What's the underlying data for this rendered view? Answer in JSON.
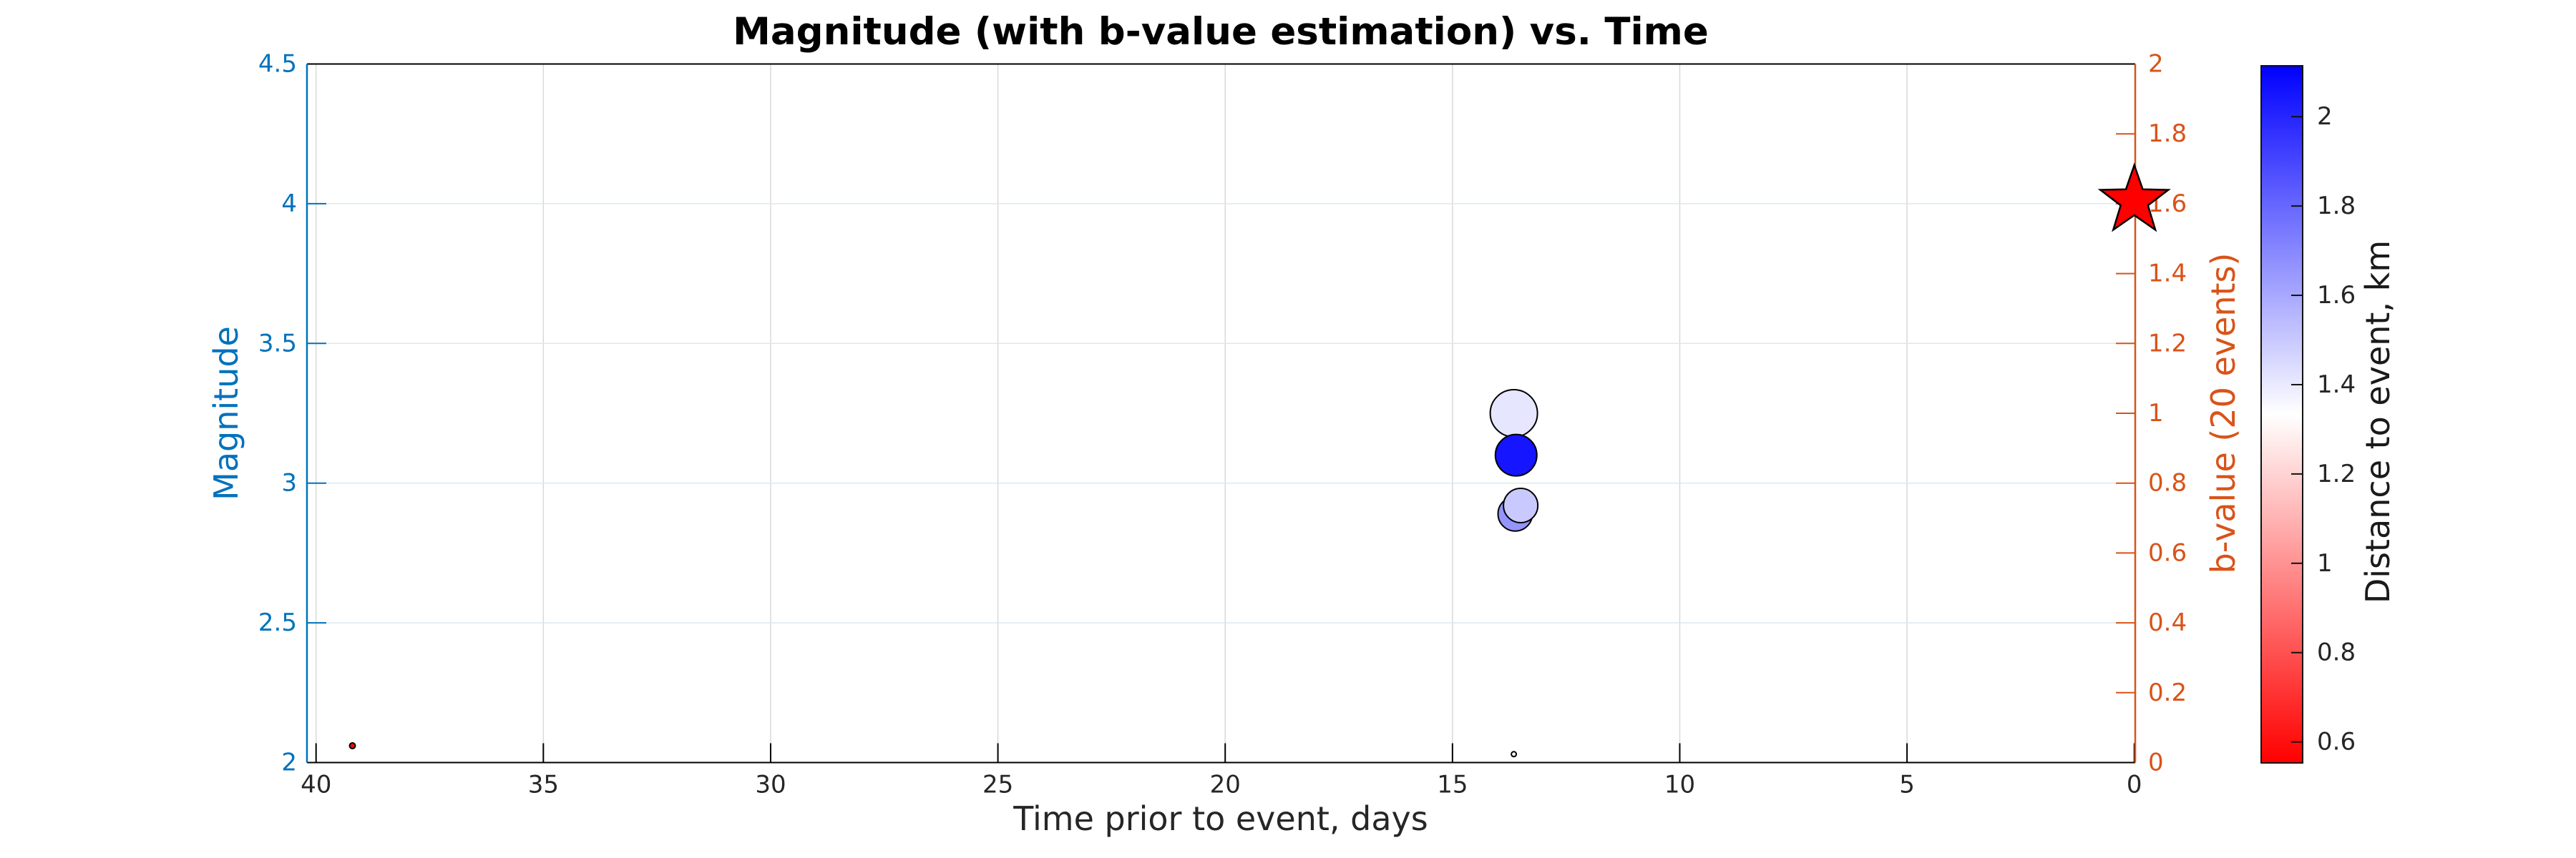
{
  "chart_data": {
    "type": "scatter",
    "title": "Magnitude (with b-value estimation) vs. Time",
    "xlabel": "Time prior to event, days",
    "x_axis": {
      "ticks": [
        40,
        35,
        30,
        25,
        20,
        15,
        10,
        5,
        0
      ],
      "range": [
        40.2,
        -0.02
      ],
      "reversed": true,
      "color": "#262626"
    },
    "left_axis": {
      "label": "Magnitude",
      "color": "#0072BD",
      "ticks": [
        2,
        2.5,
        3,
        3.5,
        4,
        4.5
      ],
      "range": [
        2,
        4.5
      ]
    },
    "right_axis": {
      "label": "b-value (20 events)",
      "color": "#D95319",
      "ticks": [
        0,
        0.2,
        0.4,
        0.6,
        0.8,
        1,
        1.2,
        1.4,
        1.6,
        1.8,
        2
      ],
      "range": [
        0,
        2
      ]
    },
    "colorbar": {
      "label": "Distance to event, km",
      "ticks": [
        0.6,
        0.8,
        1,
        1.2,
        1.4,
        1.6,
        1.8,
        2
      ],
      "range": [
        0.553,
        2.114
      ],
      "colors": [
        "#FF0000",
        "#FFFFFF",
        "#0000FF"
      ]
    },
    "grid": {
      "on": true,
      "x_grid_color": "#d9d9d9",
      "y_grid_color": "#dbe8f2"
    },
    "points": [
      {
        "time_days": 39.2,
        "magnitude": 2.06,
        "distance_km": 0.56,
        "radius_px": 4
      },
      {
        "time_days": 13.65,
        "magnitude": 3.25,
        "distance_km": 1.41,
        "radius_px": 33
      },
      {
        "time_days": 13.6,
        "magnitude": 3.1,
        "distance_km": 2.05,
        "radius_px": 29
      },
      {
        "time_days": 13.62,
        "magnitude": 2.89,
        "distance_km": 1.66,
        "radius_px": 24
      },
      {
        "time_days": 13.5,
        "magnitude": 2.92,
        "distance_km": 1.5,
        "radius_px": 24
      },
      {
        "time_days": 13.65,
        "magnitude": 2.03,
        "distance_km": 1.3,
        "radius_px": 3.5
      }
    ],
    "mainshock": {
      "time_days": 0,
      "magnitude": 4.01,
      "marker": "star",
      "color": "#FF0000"
    }
  }
}
